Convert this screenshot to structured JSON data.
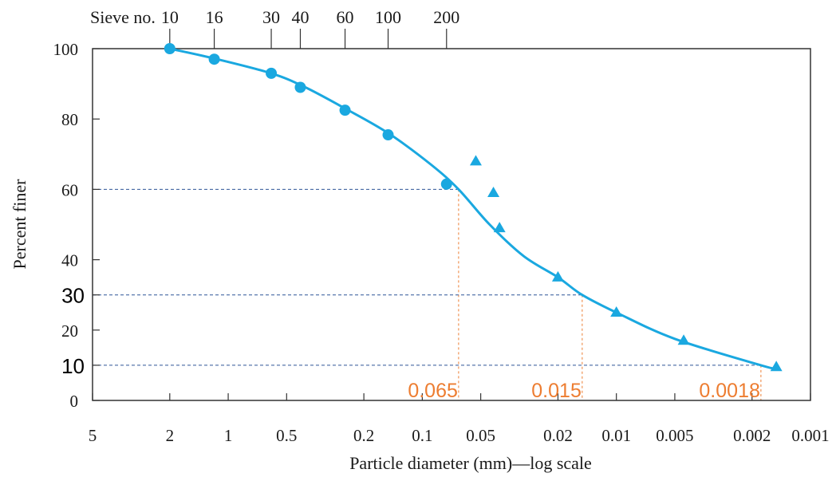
{
  "chart_data": {
    "type": "scatter",
    "title": "",
    "xlabel": "Particle diameter (mm)—log scale",
    "ylabel": "Percent finer",
    "x_scale": "log",
    "x_direction": "decreasing",
    "xlim": [
      5,
      0.001
    ],
    "ylim": [
      0,
      100
    ],
    "x_ticks": [
      {
        "value": 5,
        "label": "5"
      },
      {
        "value": 2,
        "label": "2"
      },
      {
        "value": 1,
        "label": "1"
      },
      {
        "value": 0.5,
        "label": "0.5"
      },
      {
        "value": 0.2,
        "label": "0.2"
      },
      {
        "value": 0.1,
        "label": "0.1"
      },
      {
        "value": 0.05,
        "label": "0.05"
      },
      {
        "value": 0.02,
        "label": "0.02"
      },
      {
        "value": 0.01,
        "label": "0.01"
      },
      {
        "value": 0.005,
        "label": "0.005"
      },
      {
        "value": 0.002,
        "label": "0.002"
      },
      {
        "value": 0.001,
        "label": "0.001"
      }
    ],
    "y_ticks": [
      {
        "value": 0,
        "label": "0",
        "emphasized": false
      },
      {
        "value": 10,
        "label": "10",
        "emphasized": true
      },
      {
        "value": 20,
        "label": "20",
        "emphasized": false
      },
      {
        "value": 30,
        "label": "30",
        "emphasized": true
      },
      {
        "value": 40,
        "label": "40",
        "emphasized": false
      },
      {
        "value": 60,
        "label": "60",
        "emphasized": false
      },
      {
        "value": 80,
        "label": "80",
        "emphasized": false
      },
      {
        "value": 100,
        "label": "100",
        "emphasized": false
      }
    ],
    "top_axis": {
      "label": "Sieve no.",
      "ticks": [
        {
          "value": 2.0,
          "label": "10"
        },
        {
          "value": 1.18,
          "label": "16"
        },
        {
          "value": 0.6,
          "label": "30"
        },
        {
          "value": 0.425,
          "label": "40"
        },
        {
          "value": 0.25,
          "label": "60"
        },
        {
          "value": 0.15,
          "label": "100"
        },
        {
          "value": 0.075,
          "label": "200"
        }
      ]
    },
    "series": [
      {
        "marker": "circle",
        "color": "#1aa8e0",
        "points": [
          {
            "x": 2.0,
            "y": 100
          },
          {
            "x": 1.18,
            "y": 97
          },
          {
            "x": 0.6,
            "y": 93
          },
          {
            "x": 0.425,
            "y": 89
          },
          {
            "x": 0.25,
            "y": 82.5
          },
          {
            "x": 0.15,
            "y": 75.5
          },
          {
            "x": 0.075,
            "y": 61.5
          }
        ]
      },
      {
        "marker": "triangle",
        "color": "#1aa8e0",
        "points": [
          {
            "x": 0.053,
            "y": 68
          },
          {
            "x": 0.043,
            "y": 59
          },
          {
            "x": 0.04,
            "y": 49
          },
          {
            "x": 0.02,
            "y": 35
          },
          {
            "x": 0.01,
            "y": 25
          },
          {
            "x": 0.0045,
            "y": 17
          },
          {
            "x": 0.0015,
            "y": 9.5
          }
        ]
      }
    ],
    "fitted_curve": {
      "color": "#1aa8e0",
      "points": [
        {
          "x": 2.0,
          "y": 100
        },
        {
          "x": 1.2,
          "y": 97.3
        },
        {
          "x": 0.6,
          "y": 93
        },
        {
          "x": 0.4,
          "y": 89
        },
        {
          "x": 0.25,
          "y": 83
        },
        {
          "x": 0.15,
          "y": 76
        },
        {
          "x": 0.09,
          "y": 67
        },
        {
          "x": 0.065,
          "y": 60
        },
        {
          "x": 0.045,
          "y": 50
        },
        {
          "x": 0.03,
          "y": 41
        },
        {
          "x": 0.02,
          "y": 35
        },
        {
          "x": 0.015,
          "y": 30
        },
        {
          "x": 0.01,
          "y": 25
        },
        {
          "x": 0.005,
          "y": 17.5
        },
        {
          "x": 0.0018,
          "y": 10
        },
        {
          "x": 0.0015,
          "y": 9
        }
      ]
    },
    "reference_lines": [
      {
        "y": 60,
        "x": 0.065,
        "label": "0.065"
      },
      {
        "y": 30,
        "x": 0.015,
        "label": "0.015"
      },
      {
        "y": 10,
        "x": 0.0018,
        "label": "0.0018"
      }
    ],
    "colors": {
      "data": "#1aa8e0",
      "horizontal_guides": "#2f5597",
      "vertical_guides": "#ed7d31",
      "annotation_text": "#ed7d31",
      "axes": "#333333",
      "text": "#1a1a1a"
    },
    "grid": false,
    "legend": "none"
  }
}
